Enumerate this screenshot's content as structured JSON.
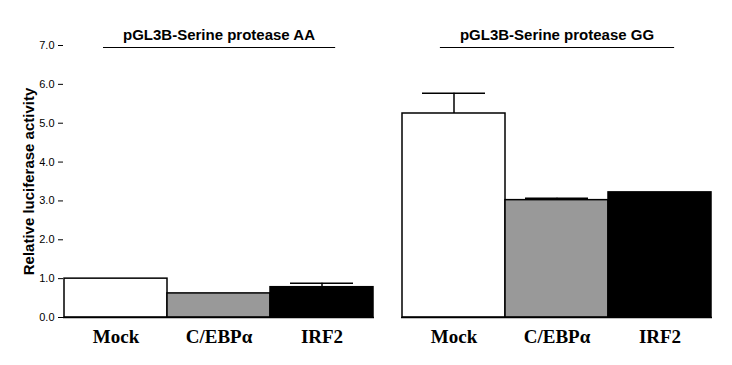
{
  "chart_data": {
    "type": "bar",
    "y_label": "Relative luciferase activity",
    "categories": [
      "Mock",
      "C/EBPα",
      "IRF2"
    ],
    "colors": [
      "#ffffff",
      "#999999",
      "#000000"
    ],
    "series": [
      {
        "name": "pGL3B-Serine protease AA",
        "values": [
          1.0,
          0.62,
          0.78
        ],
        "errors": [
          null,
          null,
          0.1
        ]
      },
      {
        "name": "pGL3B-Serine protease GG",
        "values": [
          5.25,
          3.02,
          3.22
        ],
        "errors": [
          0.52,
          0.05,
          null
        ]
      }
    ],
    "ylim": [
      0,
      7
    ],
    "yticks": [
      0,
      1,
      2,
      3,
      4,
      5,
      6,
      7
    ],
    "grid": false
  }
}
